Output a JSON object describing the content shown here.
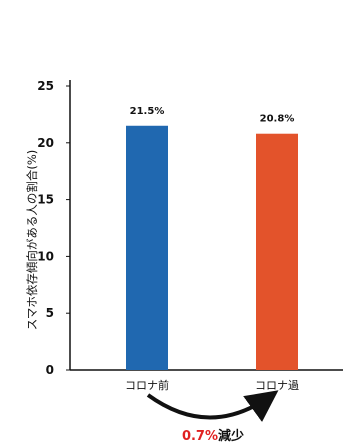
{
  "chart_data": {
    "type": "bar",
    "categories": [
      "コロナ前",
      "コロナ過"
    ],
    "values": [
      21.5,
      20.8
    ],
    "data_labels": [
      "21.5%",
      "20.8%"
    ],
    "colors": [
      "#2068b0",
      "#e3532b"
    ],
    "ylabel": "スマホ依存傾向がある人の割合(%)",
    "ylim": [
      0,
      25
    ],
    "yticks": [
      0,
      5,
      10,
      15,
      20,
      25
    ],
    "grid": false,
    "annotation": {
      "value": "0.7%",
      "text": "減少",
      "color": "#e02020"
    }
  }
}
